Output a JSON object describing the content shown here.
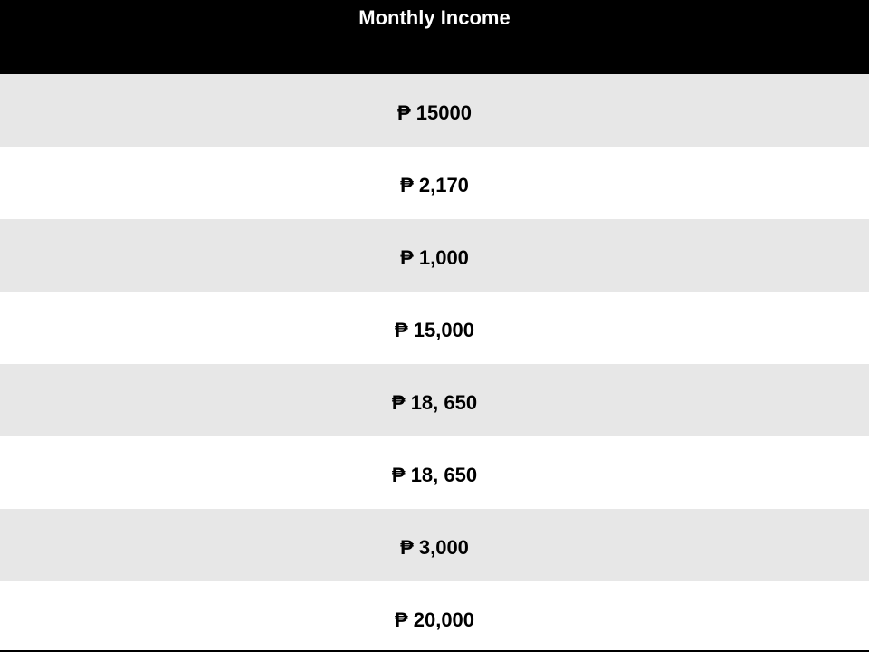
{
  "header": {
    "title": "Monthly Income"
  },
  "rows": [
    {
      "value": "₱ 15000"
    },
    {
      "value": "₱ 2,170"
    },
    {
      "value": "₱ 1,000"
    },
    {
      "value": "₱ 15,000"
    },
    {
      "value": "₱ 18, 650"
    },
    {
      "value": "₱ 18, 650"
    },
    {
      "value": "₱ 3,000"
    },
    {
      "value": "₱ 20,000"
    }
  ],
  "colors": {
    "header_bg": "#000000",
    "header_text": "#ffffff",
    "row_alt_bg": "#e7e7e7",
    "row_bg": "#ffffff"
  }
}
